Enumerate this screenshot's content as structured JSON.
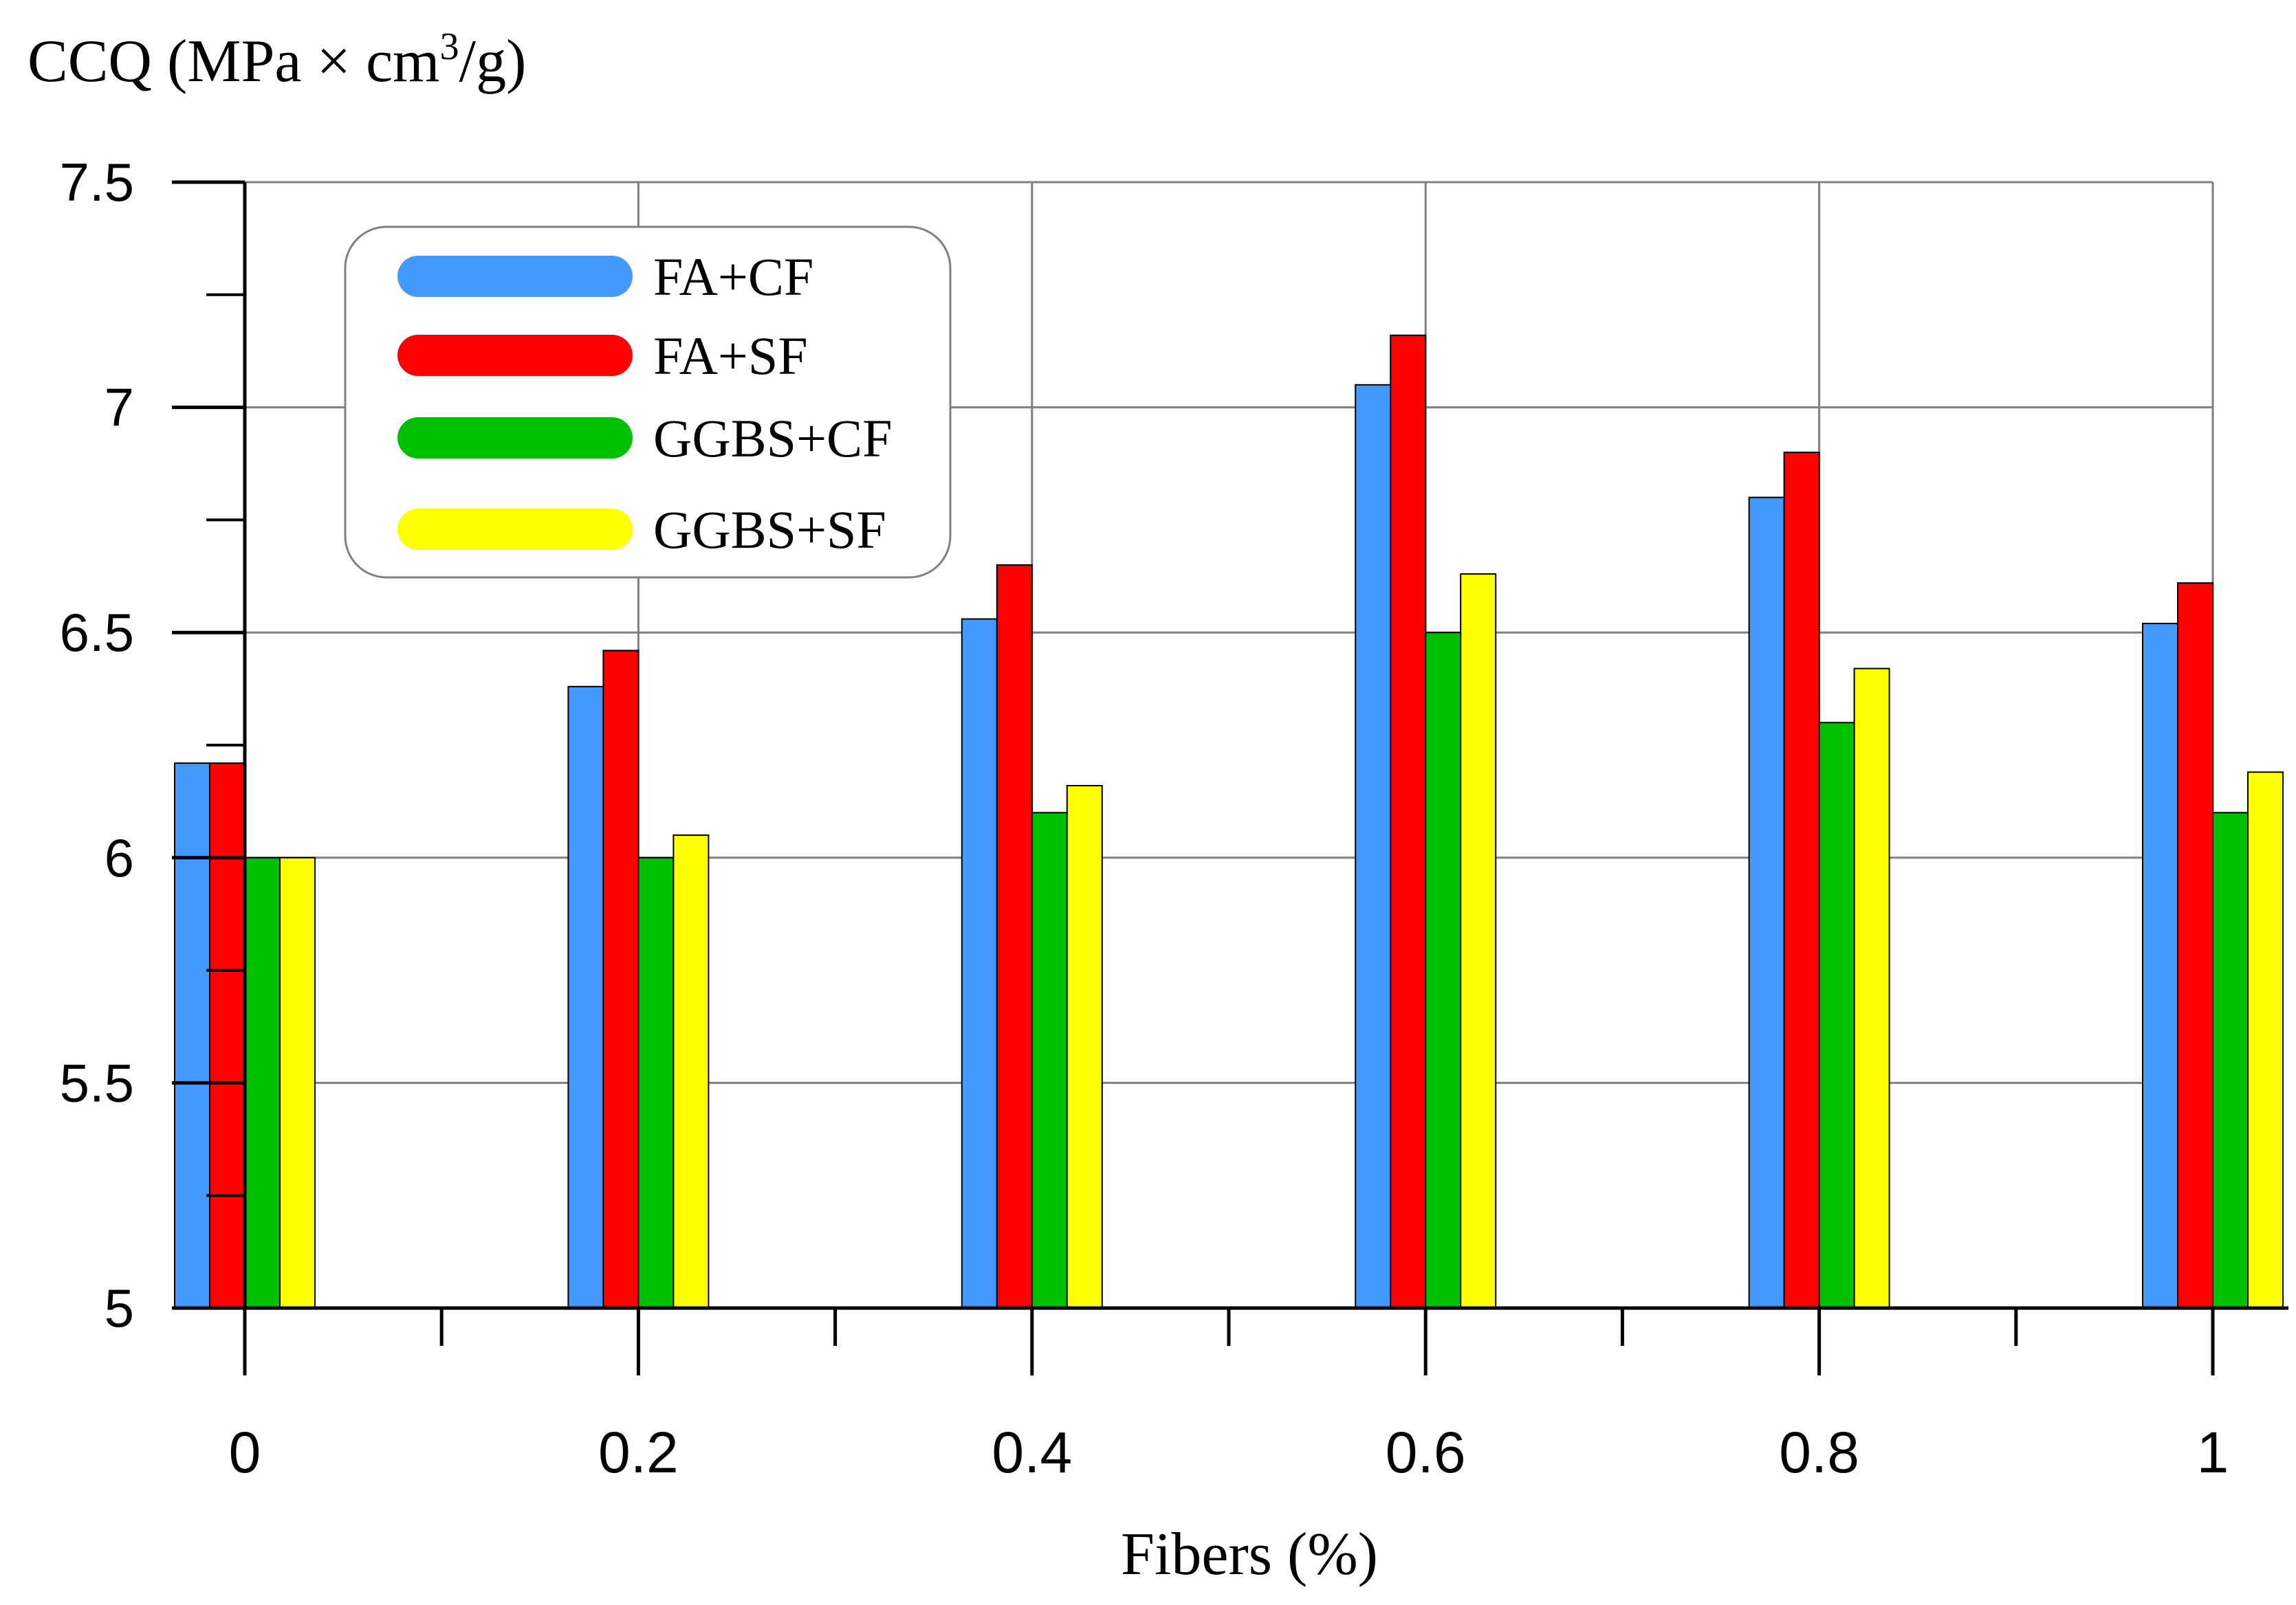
{
  "chart_data": {
    "type": "bar",
    "title": "",
    "ylabel_main": "CCQ (MPa × cm",
    "ylabel_sup": "3",
    "ylabel_tail": "/g)",
    "xlabel": "Fibers (%)",
    "ylim": [
      5,
      7.5
    ],
    "xlim": [
      0,
      1
    ],
    "categories": [
      "0",
      "0.2",
      "0.4",
      "0.6",
      "0.8",
      "1"
    ],
    "x": [
      0,
      0.2,
      0.4,
      0.6,
      0.8,
      1
    ],
    "y_ticks": [
      5,
      5.5,
      6,
      6.5,
      7,
      7.5
    ],
    "y_tick_labels": [
      "5",
      "5.5",
      "6",
      "6.5",
      "7",
      "7.5"
    ],
    "x_ticks_minor": [
      0.1,
      0.3,
      0.5,
      0.7,
      0.9
    ],
    "grid": true,
    "legend_position": "top-left",
    "series": [
      {
        "name": "FA+CF",
        "color": "#4499FF",
        "values": [
          6.21,
          6.38,
          6.53,
          7.05,
          6.8,
          6.52
        ]
      },
      {
        "name": "FA+SF",
        "color": "#FF0000",
        "values": [
          6.21,
          6.46,
          6.65,
          7.16,
          6.9,
          6.61
        ]
      },
      {
        "name": "GGBS+CF",
        "color": "#00C000",
        "values": [
          6.0,
          6.0,
          6.1,
          6.5,
          6.3,
          6.1
        ]
      },
      {
        "name": "GGBS+SF",
        "color": "#FFFF00",
        "values": [
          6.0,
          6.05,
          6.16,
          6.63,
          6.42,
          6.19
        ]
      }
    ]
  }
}
